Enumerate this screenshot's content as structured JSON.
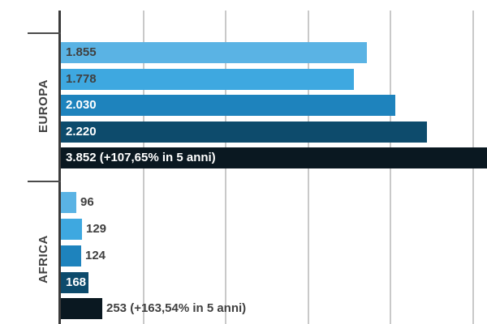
{
  "chart_data": {
    "type": "bar",
    "orientation": "horizontal",
    "title": "",
    "xlabel": "",
    "ylabel": "",
    "categories": [
      "EUROPA",
      "AFRICA"
    ],
    "series": [
      {
        "name": "series-1",
        "color": "#5AB3E4",
        "values": [
          1855,
          96
        ],
        "labels": [
          "1.855",
          "96"
        ]
      },
      {
        "name": "series-2",
        "color": "#3EA8E0",
        "values": [
          1778,
          129
        ],
        "labels": [
          "1.778",
          "129"
        ]
      },
      {
        "name": "series-3",
        "color": "#1E83BD",
        "values": [
          2030,
          124
        ],
        "labels": [
          "2.030",
          "124"
        ]
      },
      {
        "name": "series-4",
        "color": "#0D4B6C",
        "values": [
          2220,
          168
        ],
        "labels": [
          "2.220",
          "168"
        ]
      },
      {
        "name": "series-5",
        "color": "#0A1821",
        "values": [
          3852,
          253
        ],
        "labels": [
          "3.852 (+107,65% in 5 anni)",
          "253 (+163,54% in 5 anni)"
        ]
      }
    ],
    "annotations": [
      "3.852 (+107,65% in 5 anni)",
      "253 (+163,54% in 5 anni)"
    ],
    "x_axis": {
      "min": 0,
      "gridline_interval": 500,
      "gridlines": [
        500,
        1000,
        1500,
        2000,
        2500
      ],
      "tick_labels_visible": false
    },
    "legend": "none",
    "grid": true
  },
  "colors": {
    "background": "#FFFFFF",
    "gridline": "#C9C9C9",
    "axis_line": "#3B3B3B",
    "category_tick": "#4A4A4A",
    "label_dark": "#404040",
    "label_light": "#FFFFFF"
  }
}
